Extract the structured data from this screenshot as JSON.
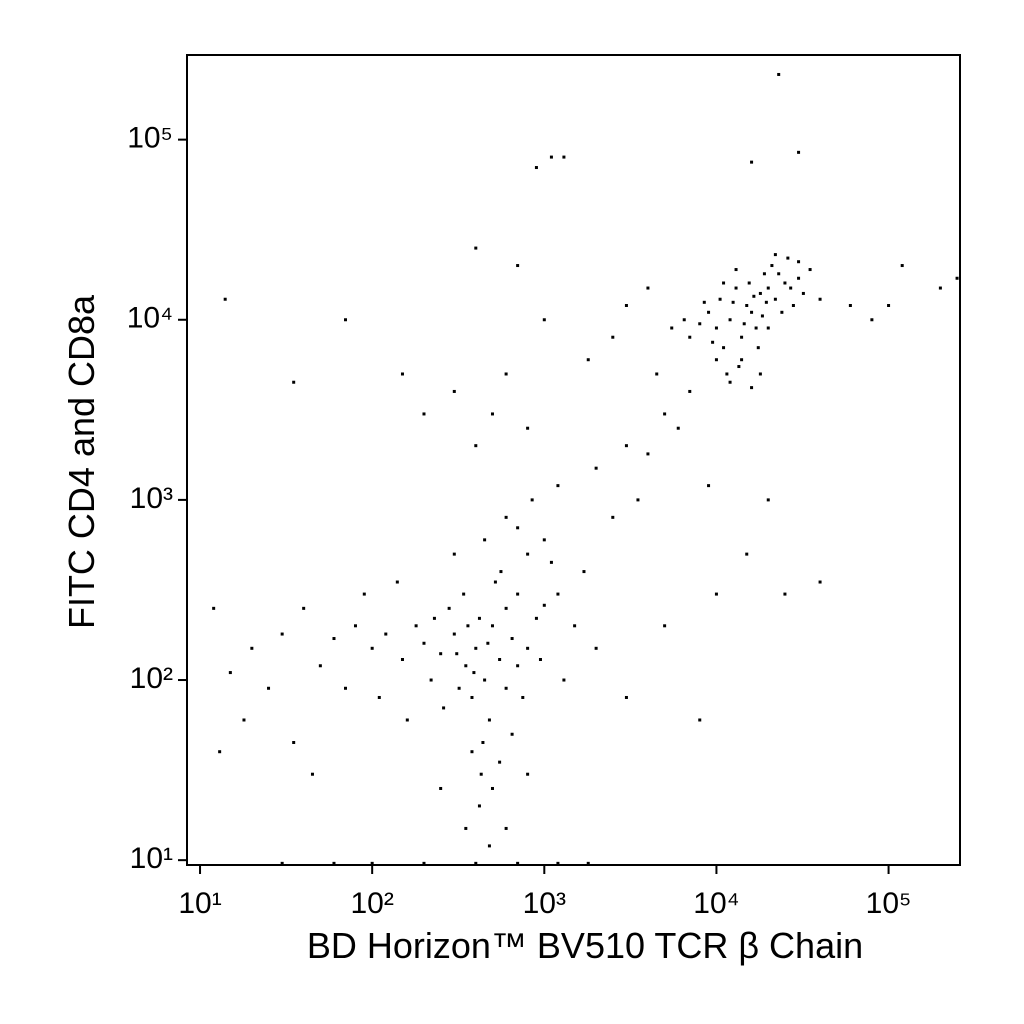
{
  "chart_data": {
    "type": "scatter",
    "x_label": "BD Horizon™ BV510 TCR β Chain",
    "y_label": "FITC CD4 and CD8a",
    "x_log": true,
    "y_log": true,
    "grid": false,
    "color": "#000000",
    "xlim": [
      8.4,
      260000
    ],
    "ylim": [
      9.4,
      295000
    ],
    "xticks": [
      {
        "value": 10,
        "label": "10¹"
      },
      {
        "value": 100,
        "label": "10²"
      },
      {
        "value": 1000,
        "label": "10³"
      },
      {
        "value": 10000,
        "label": "10⁴"
      },
      {
        "value": 100000,
        "label": "10⁵"
      }
    ],
    "yticks": [
      {
        "value": 10,
        "label": "10¹"
      },
      {
        "value": 100,
        "label": "10²"
      },
      {
        "value": 1000,
        "label": "10³"
      },
      {
        "value": 10000,
        "label": "10⁴"
      },
      {
        "value": 100000,
        "label": "10⁵"
      }
    ],
    "x": [
      15000,
      12000,
      18000,
      20000,
      10000,
      14000,
      16000,
      22000,
      9000,
      13000,
      17000,
      25000,
      11000,
      19000,
      8000,
      14000,
      21000,
      12500,
      16500,
      30000,
      28000,
      7000,
      10500,
      13500,
      18500,
      23000,
      9500,
      15500,
      11500,
      26000,
      32000,
      6500,
      12000,
      20000,
      17500,
      35000,
      8500,
      24000,
      14500,
      19500,
      27000,
      10000,
      22000,
      16000,
      40000,
      5500,
      13000,
      30000,
      18000,
      11000,
      400,
      350,
      500,
      300,
      450,
      600,
      250,
      380,
      700,
      200,
      550,
      800,
      220,
      440,
      600,
      180,
      900,
      340,
      470,
      390,
      260,
      700,
      120,
      1000,
      560,
      310,
      430,
      500,
      650,
      380,
      800,
      1200,
      230,
      100,
      80,
      60,
      50,
      40,
      30,
      20,
      25,
      15,
      70,
      90,
      140,
      160,
      110,
      300,
      450,
      700,
      1500,
      1100,
      950,
      750,
      550,
      420,
      600,
      350,
      250,
      480,
      800,
      1300,
      2000,
      1700,
      1000,
      600,
      850,
      13,
      12,
      18,
      35,
      45,
      420,
      320,
      480,
      650,
      280,
      150,
      520,
      360,
      30,
      60,
      100,
      200,
      400,
      700,
      1200,
      1800,
      1200,
      2000,
      3000,
      4000,
      5000,
      3500,
      2500,
      6000,
      7000,
      4500,
      3000,
      4000,
      2500,
      1800,
      500,
      800,
      400,
      600,
      300,
      1000,
      700,
      400,
      200,
      150,
      9000,
      10000,
      15000,
      25000,
      8000,
      3000,
      5000,
      20000,
      40000,
      23000,
      1100,
      1300,
      900,
      16000,
      30000,
      14,
      70,
      35,
      60000,
      80000,
      120000,
      200000,
      250000,
      100000
    ],
    "values": [
      12000,
      10000,
      14000,
      15000,
      9000,
      8000,
      11000,
      13000,
      11000,
      15000,
      9000,
      16000,
      7000,
      18000,
      9500,
      6000,
      20000,
      12500,
      13500,
      17000,
      12000,
      8000,
      13000,
      5500,
      10500,
      18000,
      7500,
      16000,
      5000,
      22000,
      14000,
      10000,
      4500,
      9000,
      7000,
      19000,
      12500,
      11000,
      9500,
      12500,
      15000,
      6000,
      23000,
      4200,
      13000,
      9000,
      19000,
      21000,
      5000,
      16000,
      150,
      120,
      200,
      180,
      100,
      250,
      140,
      80,
      300,
      160,
      130,
      150,
      100,
      45,
      90,
      200,
      220,
      300,
      160,
      110,
      70,
      120,
      180,
      260,
      400,
      140,
      30,
      25,
      50,
      40,
      500,
      300,
      220,
      150,
      200,
      170,
      120,
      250,
      180,
      150,
      90,
      110,
      90,
      300,
      350,
      60,
      80,
      500,
      600,
      700,
      200,
      450,
      130,
      80,
      35,
      20,
      15,
      15,
      25,
      12,
      30,
      100,
      150,
      400,
      600,
      800,
      1000,
      40,
      250,
      60,
      45,
      30,
      220,
      90,
      60,
      170,
      250,
      130,
      350,
      200,
      9.6,
      9.6,
      9.6,
      9.6,
      9.6,
      9.6,
      9.6,
      9.6,
      1200,
      1500,
      2000,
      1800,
      3000,
      1000,
      800,
      2500,
      4000,
      5000,
      12000,
      15000,
      8000,
      6000,
      3000,
      2500,
      2000,
      5000,
      4000,
      10000,
      20000,
      25000,
      3000,
      5000,
      1200,
      300,
      500,
      300,
      60,
      80,
      200,
      1000,
      350,
      230000,
      80000,
      80000,
      70000,
      75000,
      85000,
      13000,
      10000,
      4500,
      12000,
      10000,
      20000,
      15000,
      17000,
      12000
    ]
  }
}
